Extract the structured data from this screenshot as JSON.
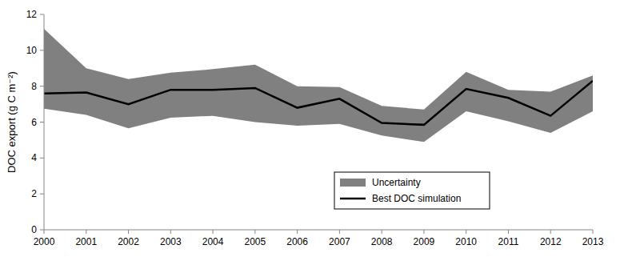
{
  "chart_data": {
    "type": "line",
    "y_label": "DOC export (g C m⁻²)",
    "x": [
      2000,
      2001,
      2002,
      2003,
      2004,
      2005,
      2006,
      2007,
      2008,
      2009,
      2010,
      2011,
      2012,
      2013
    ],
    "series": [
      {
        "name": "Uncertainty",
        "type": "area",
        "color": "#808080",
        "upper": [
          11.2,
          9.0,
          8.4,
          8.75,
          8.95,
          9.2,
          8.0,
          7.95,
          6.9,
          6.7,
          8.8,
          7.8,
          7.7,
          8.6
        ],
        "lower": [
          6.75,
          6.4,
          5.65,
          6.25,
          6.35,
          6.0,
          5.8,
          5.9,
          5.25,
          4.9,
          6.6,
          6.05,
          5.4,
          6.6
        ]
      },
      {
        "name": "Best DOC simulation",
        "type": "line",
        "color": "#000000",
        "values": [
          7.6,
          7.65,
          7.0,
          7.8,
          7.8,
          7.9,
          6.8,
          7.3,
          5.95,
          5.85,
          7.85,
          7.35,
          6.35,
          8.3
        ]
      }
    ],
    "xlim": [
      2000,
      2013
    ],
    "xticks": [
      2000,
      2001,
      2002,
      2003,
      2004,
      2005,
      2006,
      2007,
      2008,
      2009,
      2010,
      2011,
      2012,
      2013
    ],
    "ylim": [
      0,
      12
    ],
    "yticks": [
      0,
      2,
      4,
      6,
      8,
      10,
      12
    ],
    "grid": false,
    "legend": "lower right"
  }
}
